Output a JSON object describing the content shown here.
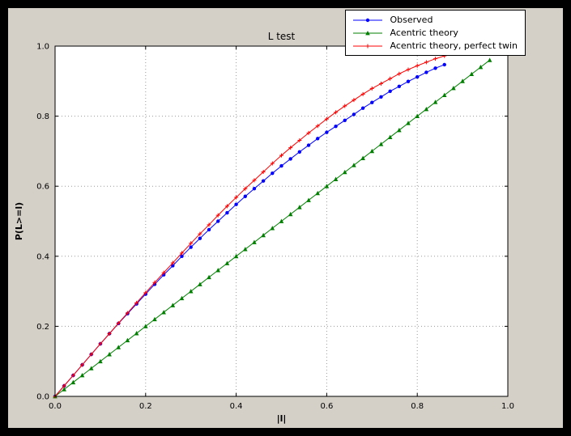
{
  "window": {
    "bg": "#000000",
    "figure_bg": "#d4d0c8",
    "axes_bg": "#ffffff",
    "spine_color": "#000000",
    "grid_color": "#9a9a9a"
  },
  "chart_data": {
    "type": "line",
    "title": "L test",
    "xlabel": "|l|",
    "ylabel": "P(L>=l)",
    "xlim": [
      0.0,
      1.0
    ],
    "ylim": [
      0.0,
      1.0
    ],
    "xticks": [
      0.0,
      0.2,
      0.4,
      0.6,
      0.8,
      1.0
    ],
    "yticks": [
      0.0,
      0.2,
      0.4,
      0.6,
      0.8,
      1.0
    ],
    "xtick_labels": [
      "0.0",
      "0.2",
      "0.4",
      "0.6",
      "0.8",
      "1.0"
    ],
    "ytick_labels": [
      "0.0",
      "0.2",
      "0.4",
      "0.6",
      "0.8",
      "1.0"
    ],
    "grid": true,
    "grid_style": "dotted",
    "legend_position": "upper right",
    "series": [
      {
        "name": "Observed",
        "color": "#0000ff",
        "marker": "circle",
        "x": [
          0.0,
          0.02,
          0.04,
          0.06,
          0.08,
          0.1,
          0.12,
          0.14,
          0.16,
          0.18,
          0.2,
          0.22,
          0.24,
          0.26,
          0.28,
          0.3,
          0.32,
          0.34,
          0.36,
          0.38,
          0.4,
          0.42,
          0.44,
          0.46,
          0.48,
          0.5,
          0.52,
          0.54,
          0.56,
          0.58,
          0.6,
          0.62,
          0.64,
          0.66,
          0.68,
          0.7,
          0.72,
          0.74,
          0.76,
          0.78,
          0.8,
          0.82,
          0.84,
          0.86
        ],
        "y": [
          0.0,
          0.03,
          0.06,
          0.09,
          0.12,
          0.15,
          0.179,
          0.208,
          0.236,
          0.264,
          0.292,
          0.32,
          0.347,
          0.373,
          0.4,
          0.426,
          0.451,
          0.476,
          0.5,
          0.524,
          0.548,
          0.571,
          0.593,
          0.615,
          0.637,
          0.658,
          0.678,
          0.698,
          0.717,
          0.736,
          0.754,
          0.771,
          0.788,
          0.805,
          0.823,
          0.839,
          0.855,
          0.871,
          0.885,
          0.899,
          0.912,
          0.925,
          0.937,
          0.947
        ]
      },
      {
        "name": "Acentric theory",
        "color": "#007f00",
        "marker": "triangle",
        "x": [
          0.0,
          0.02,
          0.04,
          0.06,
          0.08,
          0.1,
          0.12,
          0.14,
          0.16,
          0.18,
          0.2,
          0.22,
          0.24,
          0.26,
          0.28,
          0.3,
          0.32,
          0.34,
          0.36,
          0.38,
          0.4,
          0.42,
          0.44,
          0.46,
          0.48,
          0.5,
          0.52,
          0.54,
          0.56,
          0.58,
          0.6,
          0.62,
          0.64,
          0.66,
          0.68,
          0.7,
          0.72,
          0.74,
          0.76,
          0.78,
          0.8,
          0.82,
          0.84,
          0.86,
          0.88,
          0.9,
          0.92,
          0.94,
          0.96
        ],
        "y": [
          0.0,
          0.02,
          0.04,
          0.06,
          0.08,
          0.1,
          0.12,
          0.14,
          0.16,
          0.18,
          0.2,
          0.22,
          0.24,
          0.26,
          0.28,
          0.3,
          0.32,
          0.34,
          0.36,
          0.38,
          0.4,
          0.42,
          0.44,
          0.46,
          0.48,
          0.5,
          0.52,
          0.54,
          0.56,
          0.58,
          0.6,
          0.62,
          0.64,
          0.66,
          0.68,
          0.7,
          0.72,
          0.74,
          0.76,
          0.78,
          0.8,
          0.82,
          0.84,
          0.86,
          0.88,
          0.9,
          0.92,
          0.94,
          0.96
        ]
      },
      {
        "name": "Acentric theory, perfect twin",
        "color": "#ff0000",
        "marker": "plus",
        "x": [
          0.0,
          0.02,
          0.04,
          0.06,
          0.08,
          0.1,
          0.12,
          0.14,
          0.16,
          0.18,
          0.2,
          0.22,
          0.24,
          0.26,
          0.28,
          0.3,
          0.32,
          0.34,
          0.36,
          0.38,
          0.4,
          0.42,
          0.44,
          0.46,
          0.48,
          0.5,
          0.52,
          0.54,
          0.56,
          0.58,
          0.6,
          0.62,
          0.64,
          0.66,
          0.68,
          0.7,
          0.72,
          0.74,
          0.76,
          0.78,
          0.8,
          0.82,
          0.84,
          0.86,
          0.88
        ],
        "y": [
          0.0,
          0.03,
          0.06,
          0.09,
          0.12,
          0.15,
          0.179,
          0.209,
          0.238,
          0.267,
          0.296,
          0.325,
          0.353,
          0.381,
          0.409,
          0.437,
          0.464,
          0.49,
          0.517,
          0.543,
          0.568,
          0.593,
          0.617,
          0.641,
          0.665,
          0.688,
          0.71,
          0.731,
          0.752,
          0.772,
          0.792,
          0.811,
          0.829,
          0.846,
          0.863,
          0.879,
          0.893,
          0.907,
          0.921,
          0.933,
          0.944,
          0.954,
          0.964,
          0.972,
          0.979
        ]
      }
    ]
  }
}
